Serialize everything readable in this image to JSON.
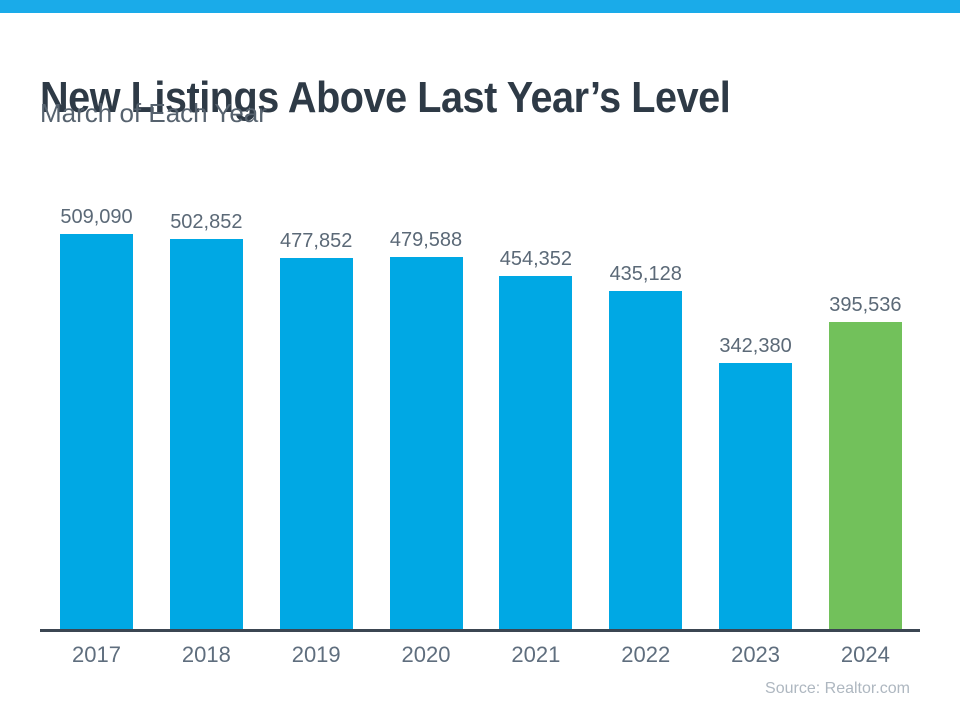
{
  "header": {
    "title": "New Listings Above Last Year’s Level",
    "subtitle": "March of Each Year"
  },
  "footer": {
    "source": "Source: Realtor.com"
  },
  "colors": {
    "accent_strip": "#1aabe9",
    "bar_default": "#00a8e4",
    "bar_highlight": "#72c15b",
    "axis_line": "#3b4652",
    "title_text": "#2e3a46",
    "subtitle_text": "#56626e",
    "value_label_text": "#5b6977",
    "year_label_text": "#5f6e7e",
    "source_text": "#aeb7c0"
  },
  "chart_data": {
    "type": "bar",
    "title": "New Listings Above Last Year’s Level",
    "subtitle": "March of Each Year",
    "categories": [
      "2017",
      "2018",
      "2019",
      "2020",
      "2021",
      "2022",
      "2023",
      "2024"
    ],
    "values": [
      509090,
      502852,
      477852,
      479588,
      454352,
      435128,
      342380,
      395536
    ],
    "value_labels": [
      "509,090",
      "502,852",
      "477,852",
      "479,588",
      "454,352",
      "435,128",
      "342,380",
      "395,536"
    ],
    "xlabel": "",
    "ylabel": "",
    "ylim": [
      0,
      509090
    ],
    "grid": false,
    "legend": false,
    "y_axis_visible": false,
    "data_labels_position": "above-bar",
    "highlight_category": "2024",
    "source": "Source: Realtor.com"
  }
}
